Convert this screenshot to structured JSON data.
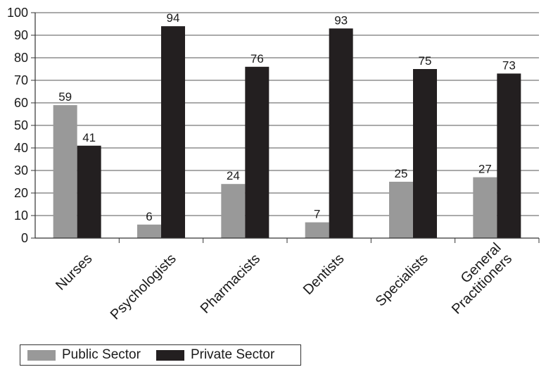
{
  "chart_data": {
    "type": "bar",
    "title": "",
    "xlabel": "",
    "ylabel": "",
    "ylim": [
      0,
      100
    ],
    "yticks": [
      0,
      10,
      20,
      30,
      40,
      50,
      60,
      70,
      80,
      90,
      100
    ],
    "categories": [
      [
        "Nurses"
      ],
      [
        "Psychologists"
      ],
      [
        "Pharmacists"
      ],
      [
        "Dentists"
      ],
      [
        "Specialists"
      ],
      [
        "General",
        "Practitioners"
      ]
    ],
    "series": [
      {
        "name": "Public Sector",
        "color": "#999999",
        "values": [
          59,
          6,
          24,
          7,
          25,
          27
        ]
      },
      {
        "name": "Private Sector",
        "color": "#231f20",
        "values": [
          41,
          94,
          76,
          93,
          75,
          73
        ]
      }
    ],
    "grid": true,
    "legend_position": "bottom-left"
  }
}
